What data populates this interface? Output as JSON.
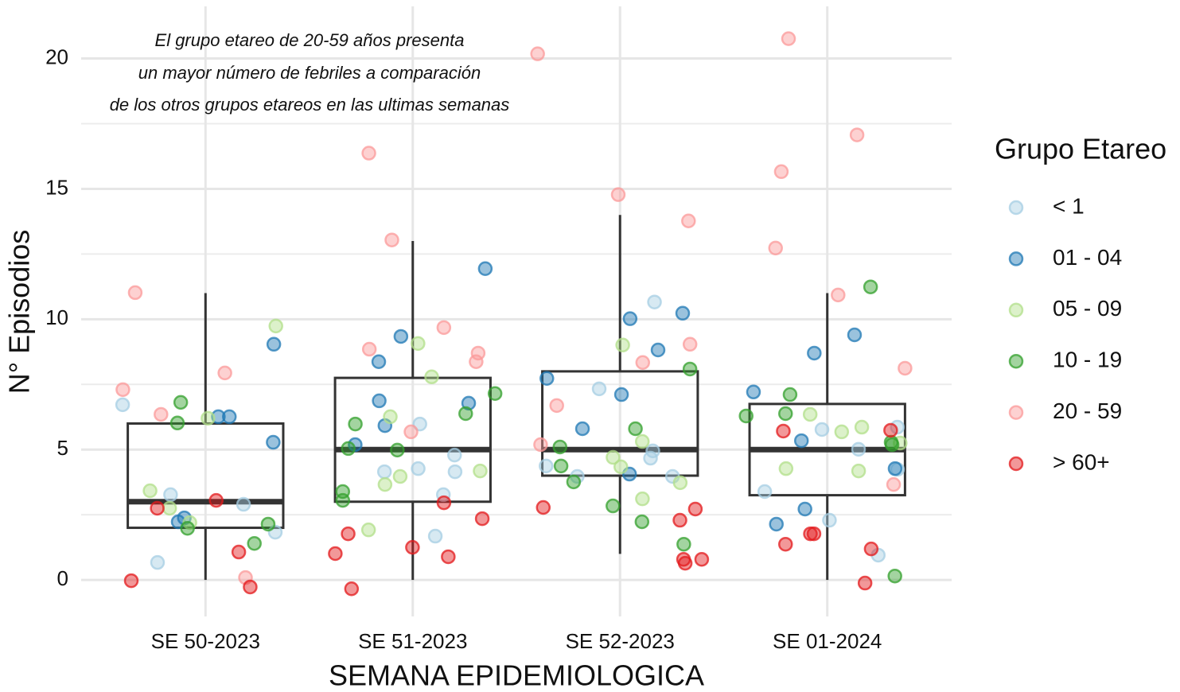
{
  "chart_data": {
    "type": "box_jitter",
    "annotation": [
      "El grupo etareo de 20-59 años presenta",
      "un mayor número de febriles a comparación",
      "de los otros grupos etareos en las ultimas semanas"
    ],
    "x_label": "SEMANA EPIDEMIOLOGICA",
    "y_label": "N° Episodios",
    "legend_title": "Grupo Etareo",
    "legend_position": "right",
    "grid": true,
    "categories": [
      "SE 50-2023",
      "SE 51-2023",
      "SE 52-2023",
      "SE 01-2024"
    ],
    "ylim": [
      -1.4,
      22
    ],
    "yticks": [
      0,
      5,
      10,
      15,
      20
    ],
    "minor_yticks": [
      2.5,
      7.5,
      12.5,
      17.5
    ],
    "box": {
      "whislo": [
        0,
        0,
        1,
        0
      ],
      "q1": [
        2,
        3,
        4,
        3.25
      ],
      "median": [
        3,
        5,
        5,
        5
      ],
      "q3": [
        6,
        7.75,
        8,
        6.75
      ],
      "whishi": [
        11,
        13,
        14,
        11
      ]
    },
    "series": [
      {
        "name": "< 1",
        "color": "#a6cee3",
        "x": [
          "SE 50-2023",
          "SE 50-2023",
          "SE 50-2023",
          "SE 50-2023",
          "SE 50-2023",
          "SE 51-2023",
          "SE 51-2023",
          "SE 51-2023",
          "SE 51-2023",
          "SE 51-2023",
          "SE 51-2023",
          "SE 51-2023",
          "SE 52-2023",
          "SE 52-2023",
          "SE 52-2023",
          "SE 52-2023",
          "SE 52-2023",
          "SE 52-2023",
          "SE 52-2023",
          "SE 01-2024",
          "SE 01-2024",
          "SE 01-2024",
          "SE 01-2024",
          "SE 01-2024",
          "SE 01-2024",
          "SE 01-2024"
        ],
        "values": [
          6.72,
          1.83,
          3.27,
          0.67,
          2.9,
          4.27,
          4.15,
          4.79,
          4.15,
          5.98,
          3.27,
          1.68,
          3.97,
          3.97,
          7.33,
          10.66,
          4.95,
          4.37,
          4.67,
          5.77,
          5.86,
          0.95,
          3.39,
          2.29,
          4.24,
          5.01
        ]
      },
      {
        "name": "01 - 04",
        "color": "#1f78b4",
        "x": [
          "SE 50-2023",
          "SE 50-2023",
          "SE 50-2023",
          "SE 50-2023",
          "SE 50-2023",
          "SE 50-2023",
          "SE 51-2023",
          "SE 51-2023",
          "SE 51-2023",
          "SE 51-2023",
          "SE 51-2023",
          "SE 51-2023",
          "SE 51-2023",
          "SE 52-2023",
          "SE 52-2023",
          "SE 52-2023",
          "SE 52-2023",
          "SE 52-2023",
          "SE 52-2023",
          "SE 52-2023",
          "SE 01-2024",
          "SE 01-2024",
          "SE 01-2024",
          "SE 01-2024",
          "SE 01-2024",
          "SE 01-2024",
          "SE 01-2024"
        ],
        "values": [
          6.26,
          6.26,
          9.04,
          5.28,
          2.38,
          2.23,
          6.78,
          5.92,
          5.19,
          6.87,
          9.34,
          8.37,
          11.94,
          4.06,
          8.82,
          10.23,
          7.73,
          5.8,
          10.02,
          7.11,
          8.7,
          2.14,
          4.27,
          7.21,
          2.72,
          5.34,
          9.4
        ]
      },
      {
        "name": "05 - 09",
        "color": "#b2df8a",
        "x": [
          "SE 50-2023",
          "SE 50-2023",
          "SE 50-2023",
          "SE 50-2023",
          "SE 50-2023",
          "SE 51-2023",
          "SE 51-2023",
          "SE 51-2023",
          "SE 51-2023",
          "SE 51-2023",
          "SE 51-2023",
          "SE 51-2023",
          "SE 52-2023",
          "SE 52-2023",
          "SE 52-2023",
          "SE 52-2023",
          "SE 52-2023",
          "SE 52-2023",
          "SE 01-2024",
          "SE 01-2024",
          "SE 01-2024",
          "SE 01-2024",
          "SE 01-2024",
          "SE 01-2024"
        ],
        "values": [
          9.74,
          6.2,
          3.42,
          2.2,
          2.75,
          6.26,
          3.97,
          3.66,
          9.07,
          7.79,
          1.92,
          4.18,
          4.7,
          3.73,
          3.11,
          5.31,
          9.01,
          4.34,
          4.18,
          5.25,
          6.35,
          5.86,
          4.27,
          5.68
        ]
      },
      {
        "name": "10 - 19",
        "color": "#33a02c",
        "x": [
          "SE 50-2023",
          "SE 50-2023",
          "SE 50-2023",
          "SE 50-2023",
          "SE 50-2023",
          "SE 51-2023",
          "SE 51-2023",
          "SE 51-2023",
          "SE 51-2023",
          "SE 51-2023",
          "SE 51-2023",
          "SE 51-2023",
          "SE 52-2023",
          "SE 52-2023",
          "SE 52-2023",
          "SE 52-2023",
          "SE 52-2023",
          "SE 52-2023",
          "SE 52-2023",
          "SE 52-2023",
          "SE 01-2024",
          "SE 01-2024",
          "SE 01-2024",
          "SE 01-2024",
          "SE 01-2024",
          "SE 01-2024",
          "SE 01-2024"
        ],
        "values": [
          6.81,
          6.02,
          1.98,
          1.4,
          2.14,
          5.04,
          6.38,
          3.39,
          4.98,
          5.98,
          3.05,
          7.15,
          3.76,
          2.23,
          4.37,
          2.84,
          5.8,
          5.1,
          8.09,
          1.37,
          5.19,
          5.28,
          0.15,
          11.24,
          7.11,
          6.29,
          6.38
        ]
      },
      {
        "name": "20 - 59",
        "color": "#fb9a99",
        "x": [
          "SE 50-2023",
          "SE 50-2023",
          "SE 50-2023",
          "SE 50-2023",
          "SE 50-2023",
          "SE 51-2023",
          "SE 51-2023",
          "SE 51-2023",
          "SE 51-2023",
          "SE 51-2023",
          "SE 51-2023",
          "SE 51-2023",
          "SE 52-2023",
          "SE 52-2023",
          "SE 52-2023",
          "SE 52-2023",
          "SE 52-2023",
          "SE 52-2023",
          "SE 52-2023",
          "SE 01-2024",
          "SE 01-2024",
          "SE 01-2024",
          "SE 01-2024",
          "SE 01-2024",
          "SE 01-2024",
          "SE 01-2024"
        ],
        "values": [
          11.02,
          7.3,
          7.94,
          6.35,
          0.09,
          5.68,
          9.68,
          8.85,
          8.37,
          16.37,
          13.04,
          8.7,
          6.69,
          14.78,
          20.18,
          13.77,
          8.34,
          9.04,
          5.19,
          3.66,
          12.73,
          8.12,
          10.93,
          17.07,
          20.76,
          15.66
        ]
      },
      {
        "name": "> 60+",
        "color": "#e31a1c",
        "x": [
          "SE 50-2023",
          "SE 50-2023",
          "SE 50-2023",
          "SE 50-2023",
          "SE 50-2023",
          "SE 51-2023",
          "SE 51-2023",
          "SE 51-2023",
          "SE 51-2023",
          "SE 51-2023",
          "SE 51-2023",
          "SE 51-2023",
          "SE 52-2023",
          "SE 52-2023",
          "SE 52-2023",
          "SE 52-2023",
          "SE 52-2023",
          "SE 52-2023",
          "SE 01-2024",
          "SE 01-2024",
          "SE 01-2024",
          "SE 01-2024",
          "SE 01-2024",
          "SE 01-2024",
          "SE 01-2024"
        ],
        "values": [
          2.75,
          3.05,
          -0.03,
          -0.27,
          1.07,
          0.89,
          1.25,
          1.01,
          1.77,
          2.35,
          -0.34,
          2.96,
          0.64,
          2.78,
          0.79,
          2.29,
          0.79,
          2.72,
          1.19,
          1.77,
          1.37,
          -0.12,
          5.74,
          1.77,
          5.71
        ]
      }
    ]
  }
}
